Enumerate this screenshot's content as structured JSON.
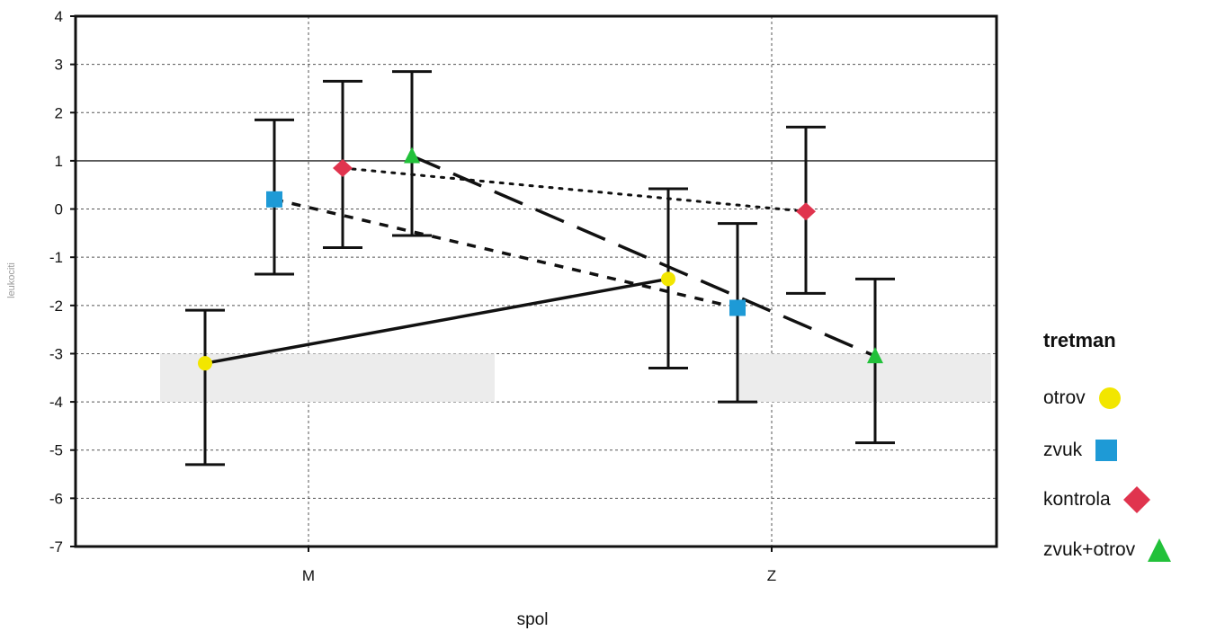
{
  "chart_data": {
    "type": "scatter",
    "xlabel": "spol",
    "ylabel": "leukociti",
    "categories": [
      "M",
      "Z"
    ],
    "ylim": [
      -7,
      4
    ],
    "yticks": [
      4,
      3,
      2,
      1,
      0,
      -1,
      -2,
      -3,
      -4,
      -5,
      -6,
      -7
    ],
    "grid": true,
    "legend": {
      "title": "tretman",
      "position": "right"
    },
    "series": [
      {
        "name": "otrov",
        "color": "#f2e600",
        "marker": "circle",
        "line": "solid",
        "values": [
          -3.2,
          -1.45
        ],
        "upper": [
          -2.1,
          0.42
        ],
        "lower": [
          -5.3,
          -3.3
        ]
      },
      {
        "name": "zvuk",
        "color": "#1e9ad6",
        "marker": "square",
        "line": "short-dash",
        "values": [
          0.2,
          -2.05
        ],
        "upper": [
          1.85,
          -0.3
        ],
        "lower": [
          -1.35,
          -4.0
        ]
      },
      {
        "name": "kontrola",
        "color": "#e0344e",
        "marker": "diamond",
        "line": "dotted",
        "values": [
          0.85,
          -0.05
        ],
        "upper": [
          2.65,
          1.7
        ],
        "lower": [
          -0.8,
          -1.75
        ]
      },
      {
        "name": "zvuk+otrov",
        "color": "#22c13a",
        "marker": "triangle",
        "line": "long-dash",
        "values": [
          1.1,
          -3.05
        ],
        "upper": [
          2.85,
          -1.45
        ],
        "lower": [
          -0.55,
          -4.85
        ]
      }
    ]
  },
  "legend_labels": {
    "title": "tretman",
    "otrov": "otrov",
    "zvuk": "zvuk",
    "kontrola": "kontrola",
    "zvuk_otrov": "zvuk+otrov"
  }
}
